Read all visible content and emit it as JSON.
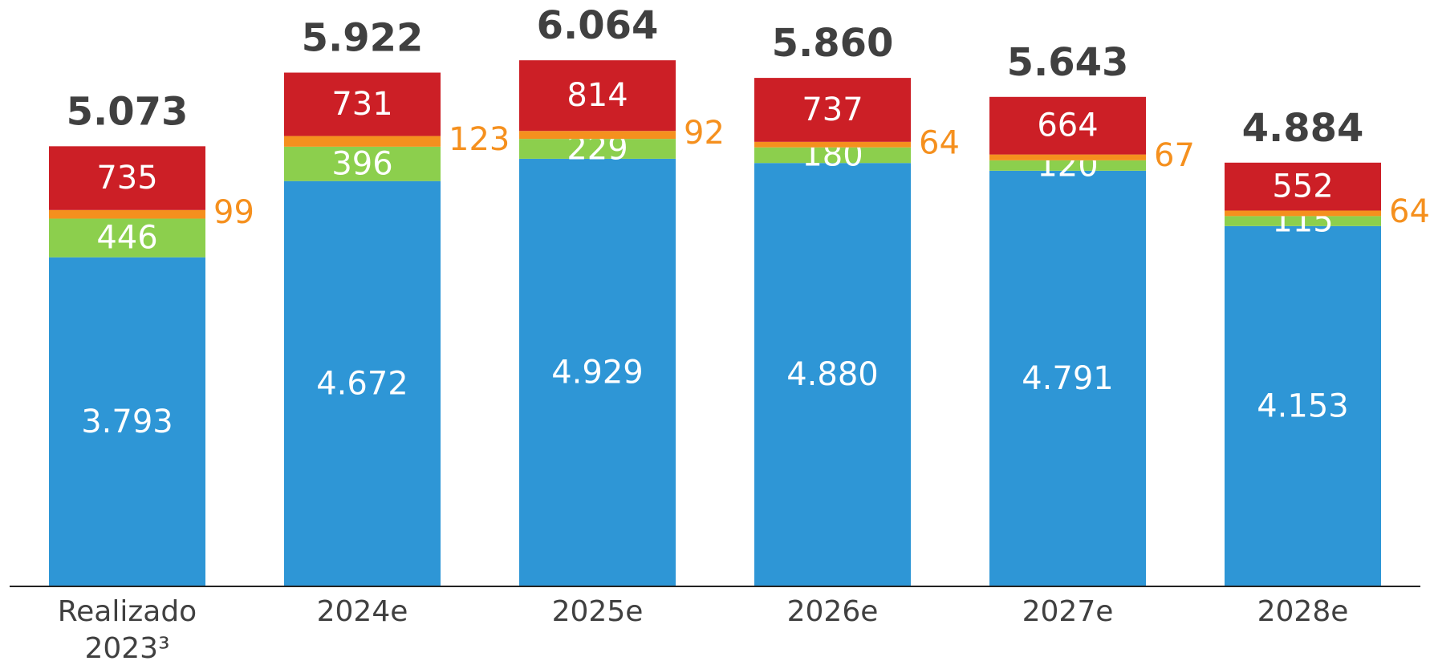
{
  "chart_data": {
    "type": "bar",
    "stacked": true,
    "categories": [
      "Realizado 2023³",
      "2024e",
      "2025e",
      "2026e",
      "2027e",
      "2028e"
    ],
    "series": [
      {
        "color": "#2e96d6",
        "values": [
          3793,
          4672,
          4929,
          4880,
          4791,
          4153
        ],
        "value_labels": [
          "3.793",
          "4.672",
          "4.929",
          "4.880",
          "4.791",
          "4.153"
        ]
      },
      {
        "color": "#8ccf4d",
        "values": [
          446,
          396,
          229,
          180,
          120,
          115
        ]
      },
      {
        "color": "#f5901e",
        "values": [
          99,
          123,
          92,
          64,
          67,
          64
        ]
      },
      {
        "color": "#cc1f26",
        "values": [
          735,
          731,
          814,
          737,
          664,
          552
        ]
      }
    ],
    "totals": {
      "values": [
        5073,
        5922,
        6064,
        5860,
        5643,
        4884
      ],
      "value_labels": [
        "5.073",
        "5.922",
        "6.064",
        "5.860",
        "5.643",
        "4.884"
      ]
    },
    "ylim": [
      0,
      6500
    ]
  }
}
